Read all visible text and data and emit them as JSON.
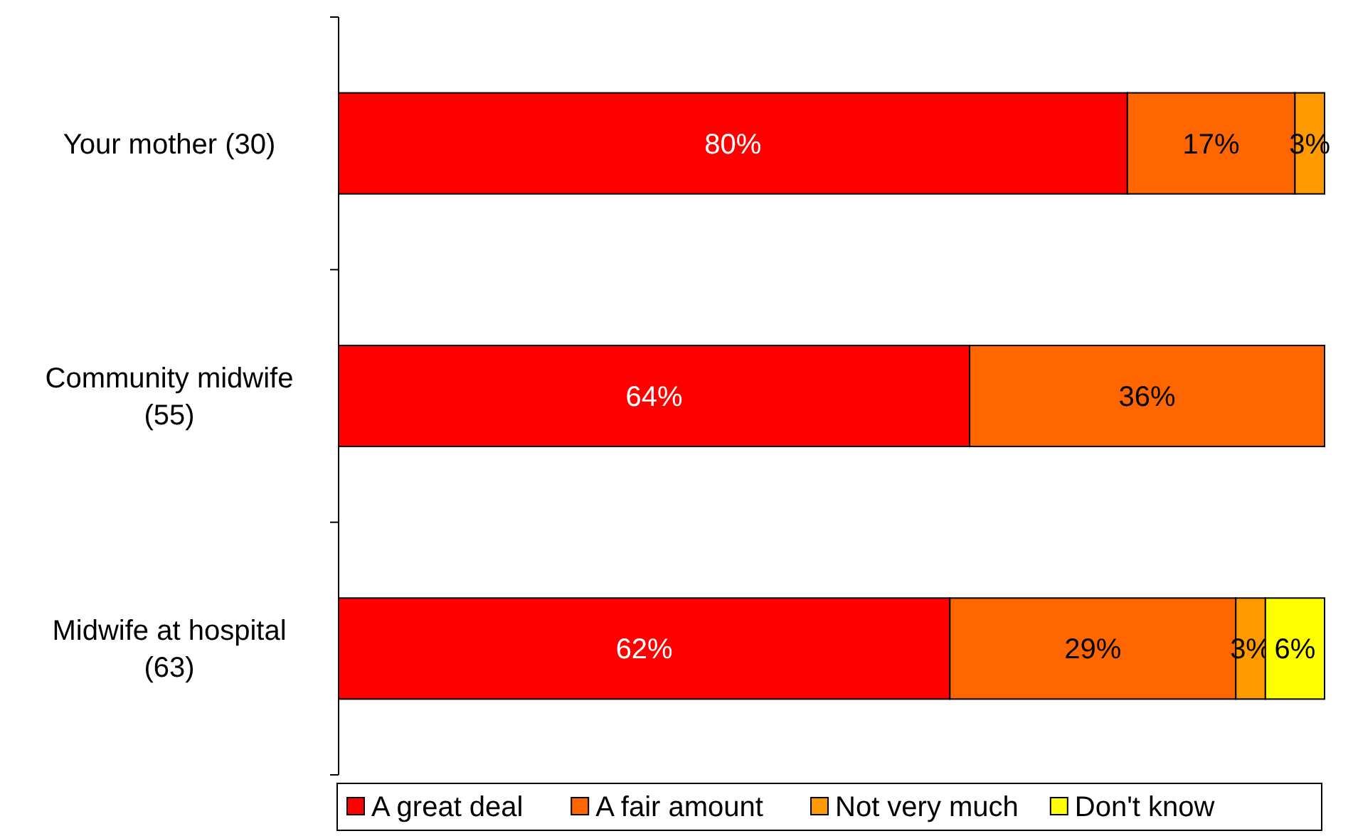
{
  "chart_data": {
    "type": "bar",
    "orientation": "horizontal",
    "stacked": true,
    "categories": [
      "Your mother (30)",
      "Community midwife (55)",
      "Midwife at hospital (63)"
    ],
    "xlim": [
      0,
      100
    ],
    "tick_labels": "y",
    "legend": "bottom",
    "series": [
      {
        "name": "A great deal",
        "color": "#ff0000",
        "values": [
          80,
          64,
          62
        ],
        "value_labels": [
          "80%",
          "64%",
          "62%"
        ]
      },
      {
        "name": "A fair amount",
        "color": "#ff6600",
        "values": [
          17,
          36,
          29
        ],
        "value_labels": [
          "17%",
          "36%",
          "29%"
        ]
      },
      {
        "name": "Not very much",
        "color": "#ff9900",
        "values": [
          3,
          null,
          3
        ],
        "value_labels": [
          "3%",
          null,
          "3%"
        ]
      },
      {
        "name": "Don't know",
        "color": "#ffff00",
        "values": [
          null,
          null,
          6
        ],
        "value_labels": [
          null,
          null,
          "6%"
        ]
      }
    ]
  }
}
